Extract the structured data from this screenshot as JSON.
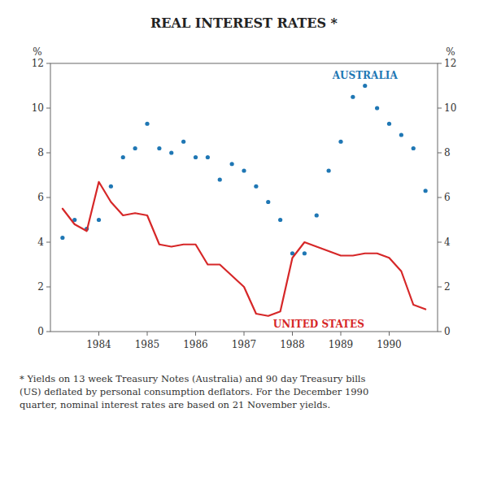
{
  "chart_data": {
    "type": "line",
    "title": "REAL INTEREST RATES *",
    "ylabel": "%",
    "y2label": "%",
    "annotations": [
      "* Yields on 13 week Treasury Notes (Australia) and 90 day Treasury bills\n(US) deflated by personal consumption deflators. For the December 1990\nquarter, nominal interest rates are based on 21 November yields."
    ],
    "x": [
      1983.25,
      1983.5,
      1983.75,
      1984.0,
      1984.25,
      1984.5,
      1984.75,
      1985.0,
      1985.25,
      1985.5,
      1985.75,
      1986.0,
      1986.25,
      1986.5,
      1986.75,
      1987.0,
      1987.25,
      1987.5,
      1987.75,
      1988.0,
      1988.25,
      1988.5,
      1988.75,
      1989.0,
      1989.25,
      1989.5,
      1989.75,
      1990.0,
      1990.25,
      1990.5,
      1990.75
    ],
    "series": [
      {
        "name": "AUSTRALIA",
        "marker": "dot",
        "line_style": "none",
        "values": [
          4.2,
          5.0,
          4.6,
          5.0,
          6.5,
          7.8,
          8.2,
          9.3,
          8.2,
          8.0,
          8.5,
          7.8,
          7.8,
          6.8,
          7.5,
          7.2,
          6.5,
          5.8,
          5.0,
          3.5,
          3.5,
          5.2,
          7.2,
          8.5,
          10.5,
          11.0,
          10.0,
          9.3,
          8.8,
          8.2,
          6.3
        ]
      },
      {
        "name": "UNITED STATES",
        "marker": "none",
        "line_style": "solid",
        "values": [
          5.5,
          4.8,
          4.5,
          6.7,
          5.8,
          5.2,
          5.3,
          5.2,
          3.9,
          3.8,
          3.9,
          3.9,
          3.0,
          3.0,
          2.5,
          2.0,
          0.8,
          0.7,
          0.9,
          3.3,
          4.0,
          3.8,
          3.6,
          3.4,
          3.4,
          3.5,
          3.5,
          3.3,
          2.7,
          1.2,
          1.0
        ]
      }
    ],
    "xlim": [
      1983.0,
      1991.0
    ],
    "xticks": [
      1984,
      1985,
      1986,
      1987,
      1988,
      1989,
      1990
    ],
    "ylim": [
      0,
      12
    ],
    "yticks": [
      0,
      2,
      4,
      6,
      8,
      10,
      12
    ],
    "y2lim": [
      0,
      12
    ],
    "y2ticks": [
      0,
      2,
      4,
      6,
      8,
      10,
      12
    ],
    "grid": false
  }
}
